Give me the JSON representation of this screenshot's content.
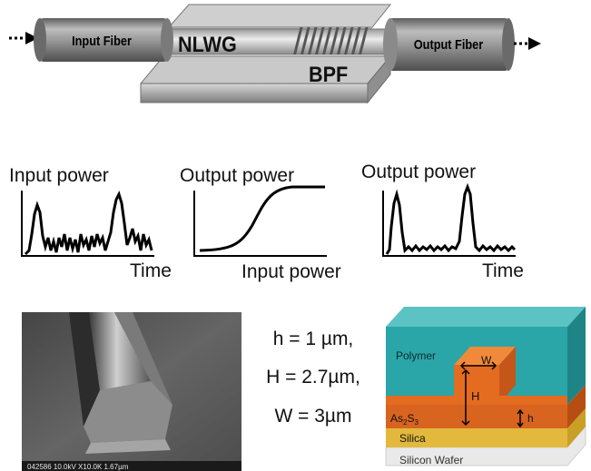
{
  "device": {
    "input_fiber_label": "Input Fiber",
    "nlwg_label": "NLWG",
    "bpf_label": "BPF",
    "output_fiber_label": "Output Fiber"
  },
  "plots": {
    "input": {
      "ylabel": "Input power",
      "xlabel": "Time"
    },
    "transfer": {
      "ylabel": "Output power",
      "xlabel": "Input power"
    },
    "output": {
      "ylabel": "Output power",
      "xlabel": "Time"
    }
  },
  "sem": {
    "caption": "042586 10.0kV X10.0K 1.67µm"
  },
  "dimensions": {
    "h": "h = 1 µm,",
    "H": "H = 2.7µm,",
    "W": "W = 3µm"
  },
  "cross_section": {
    "polymer_label": "Polymer",
    "w_label": "W",
    "H_label": "H",
    "h_label": "h",
    "as2s3_main": "As",
    "as2s3_sub1": "2",
    "as2s3_mid": "S",
    "as2s3_sub2": "3",
    "silica_label": "Silica",
    "wafer_label": "Silicon Wafer"
  },
  "colors": {
    "fiber": "#8c8c8c",
    "substrate": "#c4c4c4",
    "polymer": "#2aa5a8",
    "as2s3": "#e0661a",
    "silica": "#e7c24a",
    "wafer": "#efefef"
  }
}
